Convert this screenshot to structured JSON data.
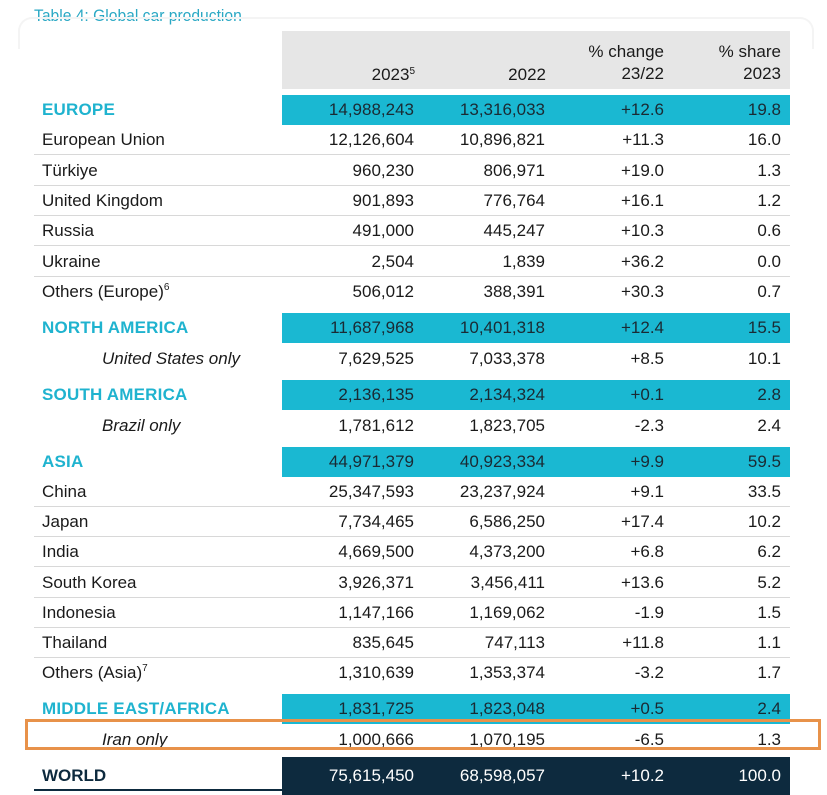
{
  "title": "Table 4: Global car production",
  "header": {
    "col1": "2023",
    "col1_sup": "5",
    "col2": "2022",
    "col3_line1": "% change",
    "col3_line2": "23/22",
    "col4_line1": "% share",
    "col4_line2": "2023"
  },
  "rows": [
    {
      "name": "EUROPE",
      "v2023": "14,988,243",
      "v2022": "13,316,033",
      "chg": "+12.6",
      "share": "19.8"
    },
    {
      "name": "European Union",
      "v2023": "12,126,604",
      "v2022": "10,896,821",
      "chg": "+11.3",
      "share": "16.0"
    },
    {
      "name": "Türkiye",
      "v2023": "960,230",
      "v2022": "806,971",
      "chg": "+19.0",
      "share": "1.3"
    },
    {
      "name": "United Kingdom",
      "v2023": "901,893",
      "v2022": "776,764",
      "chg": "+16.1",
      "share": "1.2"
    },
    {
      "name": "Russia",
      "v2023": "491,000",
      "v2022": "445,247",
      "chg": "+10.3",
      "share": "0.6"
    },
    {
      "name": "Ukraine",
      "v2023": "2,504",
      "v2022": "1,839",
      "chg": "+36.2",
      "share": "0.0"
    },
    {
      "name": "Others (Europe)",
      "sup": "6",
      "v2023": "506,012",
      "v2022": "388,391",
      "chg": "+30.3",
      "share": "0.7"
    },
    {
      "name": "NORTH AMERICA",
      "v2023": "11,687,968",
      "v2022": "10,401,318",
      "chg": "+12.4",
      "share": "15.5"
    },
    {
      "name": "United States only",
      "v2023": "7,629,525",
      "v2022": "7,033,378",
      "chg": "+8.5",
      "share": "10.1"
    },
    {
      "name": "SOUTH AMERICA",
      "v2023": "2,136,135",
      "v2022": "2,134,324",
      "chg": "+0.1",
      "share": "2.8"
    },
    {
      "name": "Brazil only",
      "v2023": "1,781,612",
      "v2022": "1,823,705",
      "chg": "-2.3",
      "share": "2.4"
    },
    {
      "name": "ASIA",
      "v2023": "44,971,379",
      "v2022": "40,923,334",
      "chg": "+9.9",
      "share": "59.5"
    },
    {
      "name": "China",
      "v2023": "25,347,593",
      "v2022": "23,237,924",
      "chg": "+9.1",
      "share": "33.5"
    },
    {
      "name": "Japan",
      "v2023": "7,734,465",
      "v2022": "6,586,250",
      "chg": "+17.4",
      "share": "10.2"
    },
    {
      "name": "India",
      "v2023": "4,669,500",
      "v2022": "4,373,200",
      "chg": "+6.8",
      "share": "6.2"
    },
    {
      "name": "South Korea",
      "v2023": "3,926,371",
      "v2022": "3,456,411",
      "chg": "+13.6",
      "share": "5.2"
    },
    {
      "name": "Indonesia",
      "v2023": "1,147,166",
      "v2022": "1,169,062",
      "chg": "-1.9",
      "share": "1.5"
    },
    {
      "name": "Thailand",
      "v2023": "835,645",
      "v2022": "747,113",
      "chg": "+11.8",
      "share": "1.1"
    },
    {
      "name": "Others (Asia)",
      "sup": "7",
      "v2023": "1,310,639",
      "v2022": "1,353,374",
      "chg": "-3.2",
      "share": "1.7"
    },
    {
      "name": "MIDDLE EAST/AFRICA",
      "v2023": "1,831,725",
      "v2022": "1,823,048",
      "chg": "+0.5",
      "share": "2.4"
    },
    {
      "name": "Iran only",
      "v2023": "1,000,666",
      "v2022": "1,070,195",
      "chg": "-6.5",
      "share": "1.3"
    },
    {
      "name": "WORLD",
      "v2023": "75,615,450",
      "v2022": "68,598,057",
      "chg": "+10.2",
      "share": "100.0"
    }
  ],
  "colors": {
    "region_band": "#1ab8d2",
    "region_text": "#1fb3cf",
    "world_band": "#0d2a3e",
    "highlight": "#e8924a",
    "header_bg": "#e6e6e6"
  }
}
